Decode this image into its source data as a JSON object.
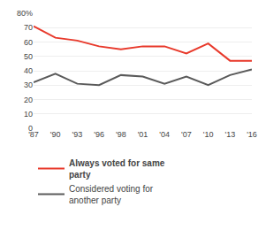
{
  "chart_data": {
    "type": "line",
    "categories": [
      "'87",
      "'90",
      "'93",
      "'96",
      "'98",
      "'01",
      "'04",
      "'07",
      "'10",
      "'13",
      "'16"
    ],
    "series": [
      {
        "name": "Always voted for same\nparty",
        "color": "#e8392b",
        "values": [
          71,
          63,
          61,
          57,
          55,
          57,
          57,
          52,
          59,
          47,
          47
        ]
      },
      {
        "name": "Considered voting for\nanother party",
        "color": "#5a5a5a",
        "values": [
          32,
          38,
          31,
          30,
          37,
          36,
          31,
          36,
          30,
          37,
          41
        ]
      }
    ],
    "ylim": [
      0,
      80
    ],
    "yticks": [
      0,
      10,
      20,
      30,
      40,
      50,
      60,
      70,
      {
        "value": 80,
        "label": "80%"
      }
    ],
    "grid": true,
    "legend": "bottom"
  }
}
